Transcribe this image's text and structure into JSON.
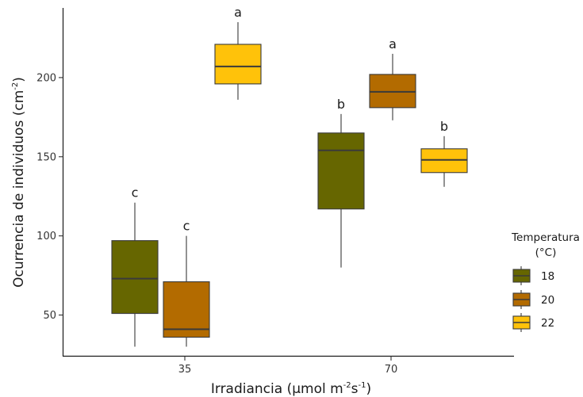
{
  "chart_data": {
    "type": "boxplot",
    "xlabel": {
      "base": "Irradiancia (",
      "unit": "μmol m",
      "exp1": "-2",
      "mid": "s",
      "exp2": "-1",
      "close": ")"
    },
    "ylabel": {
      "base": "Ocurrencia de individuos (cm",
      "exp": "-2",
      "close": ")"
    },
    "categories": [
      "35",
      "70"
    ],
    "yticks": [
      50,
      100,
      150,
      200
    ],
    "ylim": [
      24,
      244
    ],
    "legend": {
      "title_line1": "Temperatura",
      "title_line2": "(°C)",
      "placement": "right"
    },
    "series": [
      {
        "name": "18",
        "color": "#666600",
        "boxes": [
          {
            "category": "35",
            "min": 30,
            "q1": 51,
            "median": 73,
            "q3": 97,
            "max": 121,
            "letter": "c"
          },
          {
            "category": "70",
            "min": 80,
            "q1": 117,
            "median": 154,
            "q3": 165,
            "max": 177,
            "letter": "b"
          }
        ]
      },
      {
        "name": "20",
        "color": "#B36B00",
        "boxes": [
          {
            "category": "35",
            "min": 30,
            "q1": 36,
            "median": 41,
            "q3": 71,
            "max": 100,
            "letter": "c"
          },
          {
            "category": "70",
            "min": 173,
            "q1": 181,
            "median": 191,
            "q3": 202,
            "max": 215,
            "letter": "a"
          }
        ]
      },
      {
        "name": "22",
        "color": "#FFC20A",
        "boxes": [
          {
            "category": "35",
            "min": 186,
            "q1": 196,
            "median": 207,
            "q3": 221,
            "max": 235,
            "letter": "a"
          },
          {
            "category": "70",
            "min": 131,
            "q1": 140,
            "median": 148,
            "q3": 155,
            "max": 163,
            "letter": "b"
          }
        ]
      }
    ]
  }
}
